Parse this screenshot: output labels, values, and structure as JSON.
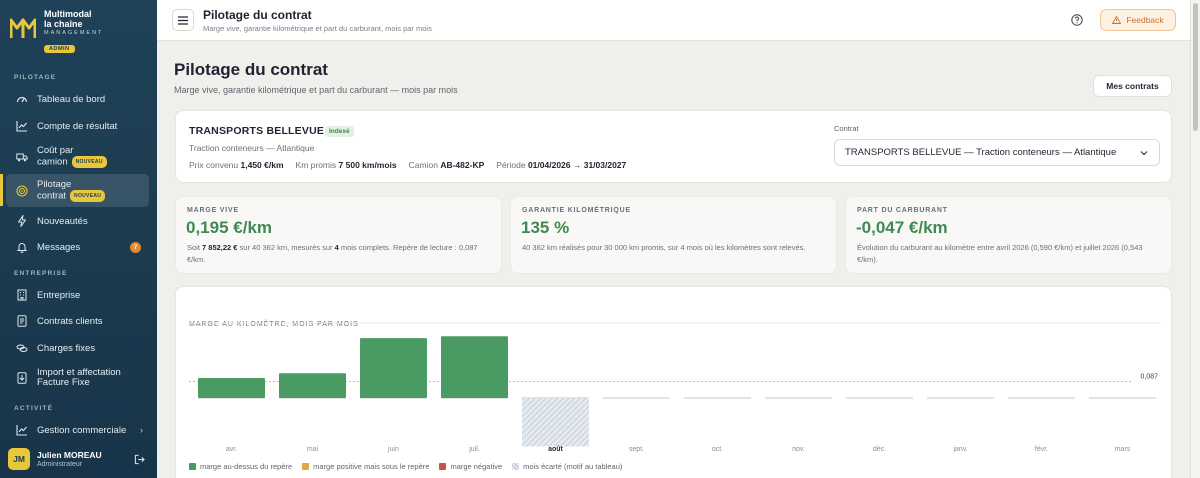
{
  "brand": {
    "line1": "Multimodal",
    "line2": "la chaîne",
    "sub": "MANAGEMENT",
    "badge": "ADMIN",
    "color": "#e8c73a"
  },
  "sidebar": {
    "section_pilotage": "PILOTAGE",
    "section_entreprise": "ENTREPRISE",
    "section_activite": "ACTIVITÉ",
    "items": [
      {
        "label": "Tableau de bord",
        "icon": "dashboard-icon"
      },
      {
        "label": "Compte de résultat",
        "icon": "chart-line-icon"
      },
      {
        "label_a": "Coût par",
        "label_b": "camion",
        "badge": "NOUVEAU",
        "icon": "truck-icon"
      },
      {
        "label_a": "Pilotage",
        "label_b": "contrat",
        "badge": "NOUVEAU",
        "icon": "target-icon",
        "active": true
      },
      {
        "label": "Nouveautés",
        "icon": "bolt-icon"
      },
      {
        "label": "Messages",
        "icon": "bell-icon",
        "count": "7"
      },
      {
        "label": "Entreprise",
        "icon": "building-icon"
      },
      {
        "label": "Contrats clients",
        "icon": "contract-icon"
      },
      {
        "label": "Charges fixes",
        "icon": "coins-icon"
      },
      {
        "label_a": "Import et affectation",
        "label_b": "Facture Fixe",
        "icon": "import-icon"
      },
      {
        "label": "Gestion commerciale",
        "icon": "chart-line-icon"
      }
    ],
    "user": {
      "initials": "JM",
      "name": "Julien MOREAU",
      "role": "Administrateur"
    }
  },
  "topbar": {
    "title": "Pilotage du contrat",
    "subtitle": "Marge vive, garantie kilométrique et part du carburant, mois par mois",
    "feedback": "Feedback"
  },
  "page": {
    "title": "Pilotage du contrat",
    "subtitle": "Marge vive, garantie kilométrique et part du carburant — mois par mois",
    "contracts_button": "Mes contrats"
  },
  "contract": {
    "name": "TRANSPORTS BELLEVUE",
    "tag": "Indexé",
    "line": "Traction conteneurs — Atlantique",
    "prix_label": "Prix convenu",
    "prix_value": "1,450 €/km",
    "km_label": "Km promis",
    "km_value": "7 500 km/mois",
    "camion_label": "Camion",
    "camion_value": "AB-482-KP",
    "periode_label": "Période",
    "periode_value": "01/04/2026 → 31/03/2027",
    "select_label": "Contrat",
    "select_value": "TRANSPORTS BELLEVUE — Traction conteneurs — Atlantique"
  },
  "kpis": {
    "marge": {
      "label": "MARGE VIVE",
      "value": "0,195 €/km",
      "d1": "Soit ",
      "d2": "7 852,22 €",
      "d3": " sur 40 362 km, mesurés sur ",
      "d4": "4",
      "d5": " mois complets. Repère de lecture : 0,087 €/km."
    },
    "garantie": {
      "label": "GARANTIE KILOMÉTRIQUE",
      "value": "135 %",
      "desc": "40 362 km réalisés pour 30 000 km promis, sur 4 mois où les kilomètres sont relevés."
    },
    "carburant": {
      "label": "PART DU CARBURANT",
      "value": "-0,047 €/km",
      "desc": "Évolution du carburant au kilomètre entre avril 2026 (0,590 €/km) et juillet 2026 (0,543 €/km)."
    }
  },
  "chart_data": {
    "type": "bar",
    "title": "MARGE AU KILOMÈTRE, MOIS PAR MOIS",
    "categories": [
      "avr.",
      "mai",
      "juin",
      "juil.",
      "août",
      "sept.",
      "oct.",
      "nov.",
      "déc.",
      "janv.",
      "févr.",
      "mars"
    ],
    "values": [
      0.105,
      0.13,
      0.315,
      0.325,
      -0.255,
      null,
      null,
      null,
      null,
      null,
      null,
      null
    ],
    "status": [
      "above",
      "above",
      "above",
      "above",
      "excluded",
      null,
      null,
      null,
      null,
      null,
      null,
      null
    ],
    "highlight_category": "août",
    "reference": 0.087,
    "reference_label": "0,087",
    "ylim": [
      -0.26,
      0.42
    ],
    "colors": {
      "above": "#4a9a64",
      "positive_below": "#e0a84a",
      "negative": "#c8524a",
      "excluded": "#c8cfdc"
    },
    "legend": [
      {
        "label": "marge au-dessus du repère",
        "key": "above"
      },
      {
        "label": "marge positive mais sous le repère",
        "key": "positive_below"
      },
      {
        "label": "marge négative",
        "key": "negative"
      },
      {
        "label": "mois écarté (motif au tableau)",
        "key": "excluded"
      }
    ]
  }
}
